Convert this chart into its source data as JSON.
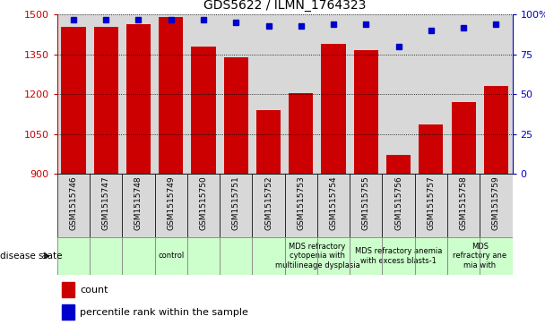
{
  "title": "GDS5622 / ILMN_1764323",
  "samples": [
    "GSM1515746",
    "GSM1515747",
    "GSM1515748",
    "GSM1515749",
    "GSM1515750",
    "GSM1515751",
    "GSM1515752",
    "GSM1515753",
    "GSM1515754",
    "GSM1515755",
    "GSM1515756",
    "GSM1515757",
    "GSM1515758",
    "GSM1515759"
  ],
  "counts": [
    1455,
    1453,
    1463,
    1490,
    1380,
    1340,
    1140,
    1205,
    1390,
    1365,
    970,
    1085,
    1170,
    1230
  ],
  "percentile_ranks": [
    97,
    97,
    97,
    97,
    97,
    95,
    93,
    93,
    94,
    94,
    80,
    90,
    92,
    94
  ],
  "y_min": 900,
  "y_max": 1500,
  "y_ticks": [
    900,
    1050,
    1200,
    1350,
    1500
  ],
  "y2_ticks": [
    0,
    25,
    50,
    75,
    100
  ],
  "bar_color": "#cc0000",
  "dot_color": "#0000cc",
  "cell_bg": "#d8d8d8",
  "plot_bg": "#ffffff",
  "disease_groups": [
    {
      "label": "control",
      "start": 0,
      "end": 7
    },
    {
      "label": "MDS refractory\ncytopenia with\nmultilineage dysplasia",
      "start": 7,
      "end": 9
    },
    {
      "label": "MDS refractory anemia\nwith excess blasts-1",
      "start": 9,
      "end": 12
    },
    {
      "label": "MDS\nrefractory ane\nmia with",
      "start": 12,
      "end": 14
    }
  ],
  "legend_count_label": "count",
  "legend_pct_label": "percentile rank within the sample",
  "xlabel_disease": "disease state"
}
